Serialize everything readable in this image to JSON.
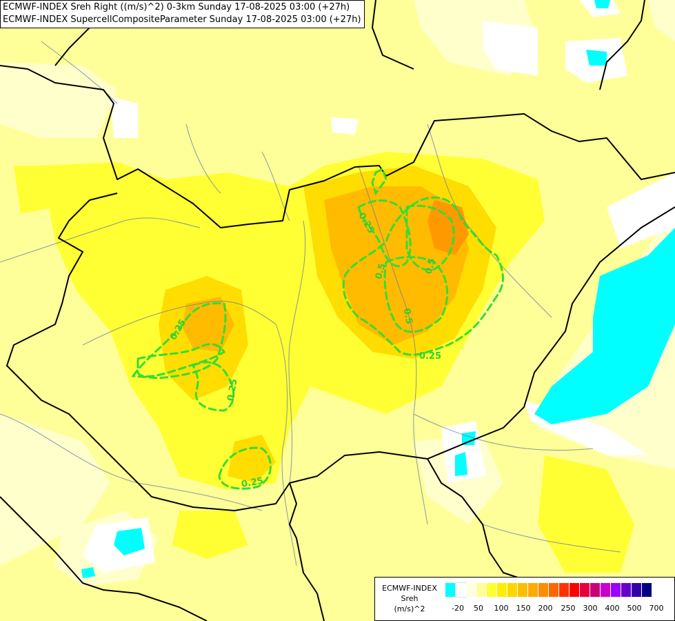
{
  "header": {
    "line1": "ECMWF-INDEX Sreh Right ((m/s)^2) 0-3km Sunday 17-08-2025 03:00 (+27h)",
    "line2": "ECMWF-INDEX SupercellCompositeParameter Sunday 17-08-2025 03:00 (+27h)"
  },
  "contour_labels": [
    "0.25",
    "0.25",
    "0.25",
    "0.5",
    "0.25",
    "0.5",
    "0.5",
    "0.25"
  ],
  "legend": {
    "title_lines": [
      "ECMWF-INDEX",
      "Sreh",
      "(m/s)^2"
    ],
    "colors": [
      "#00ffff",
      "#ffffff",
      "#ffffe0",
      "#ffff99",
      "#ffff33",
      "#ffee00",
      "#ffd700",
      "#ffbf00",
      "#ffaa00",
      "#ff8c00",
      "#ff6600",
      "#ff3300",
      "#ff0000",
      "#e6003c",
      "#cc0077",
      "#cc00cc",
      "#9900ff",
      "#6600cc",
      "#3300aa",
      "#000080"
    ],
    "tick_labels": [
      "-20",
      "50",
      "100",
      "150",
      "200",
      "250",
      "300",
      "400",
      "500",
      "700"
    ]
  },
  "colors": {
    "base_yellow": "#ffff99",
    "light_yellow": "#ffffcc",
    "yellow": "#ffff33",
    "gold": "#ffdd00",
    "orange": "#ffbb00",
    "dark_orange": "#ff9900",
    "cyan": "#00ffff",
    "contour_green": "#33dd33"
  }
}
